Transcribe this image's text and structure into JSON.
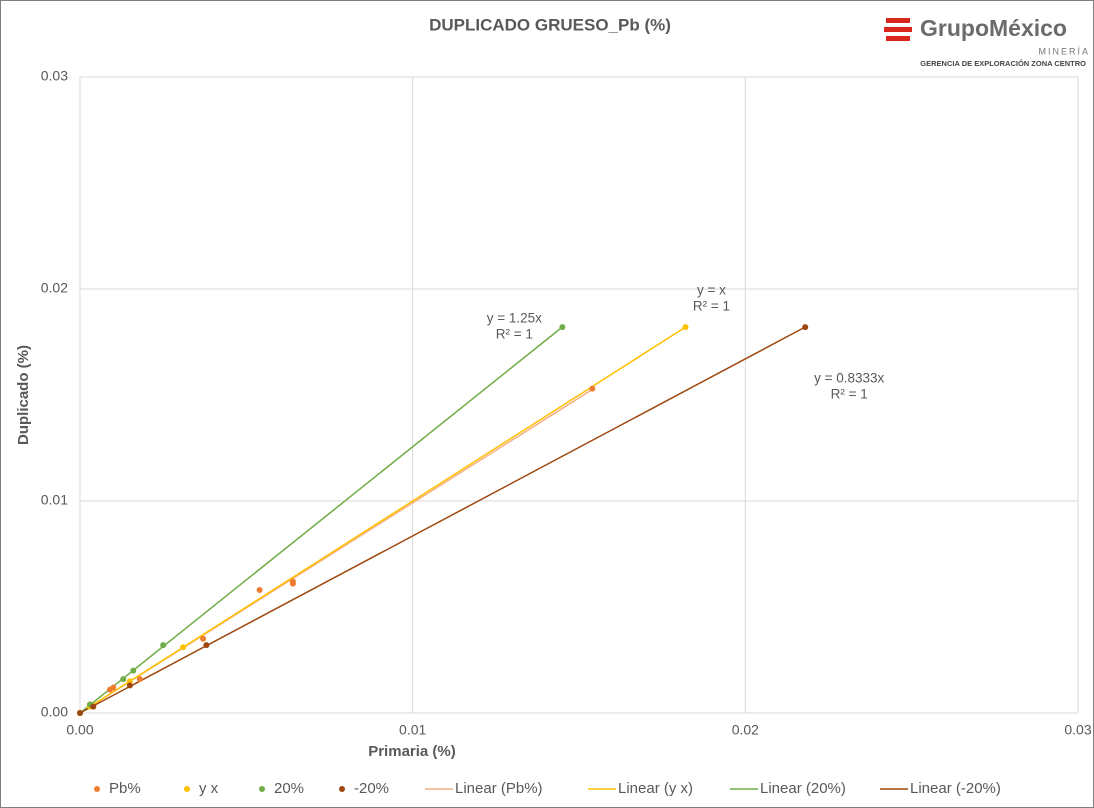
{
  "chart_data": {
    "type": "scatter",
    "title": "DUPLICADO GRUESO_Pb (%)",
    "x_label": "Primaria (%)",
    "y_label": "Duplicado (%)",
    "xlim": [
      0,
      0.03
    ],
    "ylim": [
      0,
      0.03
    ],
    "xticks": [
      {
        "value": 0,
        "label": "0.00"
      },
      {
        "value": 0.01,
        "label": "0.01"
      },
      {
        "value": 0.02,
        "label": "0.02"
      },
      {
        "value": 0.03,
        "label": "0.03"
      }
    ],
    "yticks": [
      {
        "value": 0,
        "label": "0.00"
      },
      {
        "value": 0.01,
        "label": "0.01"
      },
      {
        "value": 0.02,
        "label": "0.02"
      },
      {
        "value": 0.03,
        "label": "0.03"
      }
    ],
    "grid": true,
    "legend": "bottom",
    "series": [
      {
        "name": "Pb%",
        "color": "#ED7D31",
        "trendline_name": "Linear (Pb%)",
        "trendline_color": "#F4B183",
        "x": [
          0,
          0.0003,
          0.0009,
          0.001,
          0.0018,
          0.0037,
          0.0054,
          0.0064,
          0.0064,
          0.0154
        ],
        "values": [
          0,
          0.0004,
          0.0011,
          0.0012,
          0.0016,
          0.0035,
          0.0058,
          0.0062,
          0.0061,
          0.0153
        ]
      },
      {
        "name": "y x",
        "color": "#FFC000",
        "trendline_name": "Linear (y x)",
        "trendline_color": "#FFC000",
        "trendline_label": [
          "y = x",
          "R² = 1"
        ],
        "x": [
          0,
          0.0003,
          0.0015,
          0.0031,
          0.0182
        ],
        "values": [
          0,
          0.0003,
          0.0015,
          0.0031,
          0.0182
        ]
      },
      {
        "name": "20%",
        "color": "#70AD47",
        "trendline_name": "Linear (20%)",
        "trendline_color": "#70AD47",
        "trendline_label": [
          "y = 1.25x",
          "R² = 1"
        ],
        "x": [
          0,
          0.0003,
          0.0013,
          0.0016,
          0.0025,
          0.0145
        ],
        "values": [
          0,
          0.0004,
          0.0016,
          0.002,
          0.0032,
          0.0182
        ]
      },
      {
        "name": "-20%",
        "color": "#9E480E",
        "trendline_name": "Linear (-20%)",
        "trendline_color": "#9E480E",
        "trendline_label": [
          "y = 0.8333x",
          "R² = 1"
        ],
        "x": [
          0,
          0.0004,
          0.0015,
          0.0038,
          0.0218
        ],
        "values": [
          0,
          0.0003,
          0.0013,
          0.0032,
          0.0182
        ]
      }
    ]
  },
  "logo": {
    "brand": "GrupoMéxico",
    "division": "MINERÍA",
    "unit": "GERENCIA DE EXPLORACIÓN ZONA CENTRO"
  }
}
